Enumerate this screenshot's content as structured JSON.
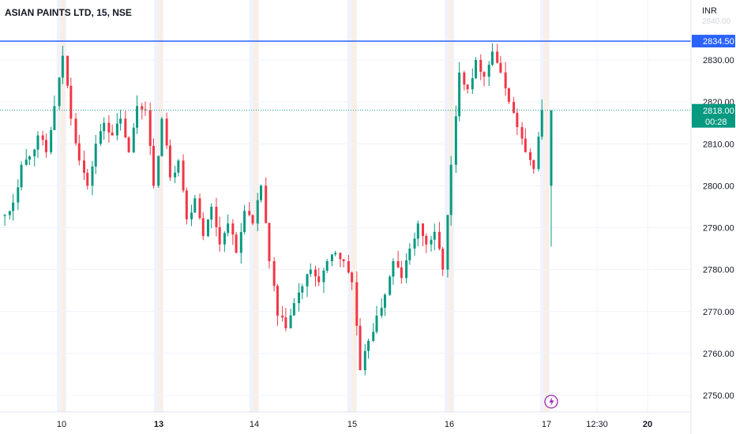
{
  "header": {
    "title": "ASIAN PAINTS LTD, 15, NSE",
    "currency": "INR",
    "partial_top_tick": "2840.00"
  },
  "chart_data": {
    "type": "candlestick",
    "title": "ASIAN PAINTS LTD, 15, NSE",
    "ylabel": "INR",
    "ylim": [
      2746,
      2840
    ],
    "yticks": [
      "2750.00",
      "2760.00",
      "2770.00",
      "2780.00",
      "2790.00",
      "2800.00",
      "2810.00",
      "2820.00",
      "2830.00"
    ],
    "xticks": [
      "10",
      "13",
      "14",
      "15",
      "16",
      "17",
      "12:30",
      "20"
    ],
    "horizontal_line": {
      "value": 2834.5,
      "label": "2834.50"
    },
    "last_price": {
      "value": 2818.0,
      "label": "2818.00",
      "countdown": "00:28"
    },
    "session_markers": [
      "10",
      "13",
      "14",
      "15",
      "16",
      "17"
    ],
    "colors": {
      "up": "#089981",
      "down": "#f23645",
      "level": "#2962ff"
    },
    "last_bar": {
      "open": 2800.0,
      "high": 2818.0,
      "low": 2785.5,
      "close": 2818.0
    },
    "anchors": [
      {
        "day": "9",
        "close": 2793
      },
      {
        "day": "9",
        "close": 2796
      },
      {
        "day": "9",
        "close": 2805
      },
      {
        "day": "9",
        "close": 2807
      },
      {
        "day": "9",
        "close": 2812
      },
      {
        "day": "9",
        "close": 2808
      },
      {
        "day": "9",
        "close": 2819
      },
      {
        "day": "10",
        "close": 2831
      },
      {
        "day": "10",
        "close": 2816
      },
      {
        "day": "10",
        "close": 2806
      },
      {
        "day": "10",
        "close": 2800
      },
      {
        "day": "10",
        "close": 2810
      },
      {
        "day": "10",
        "close": 2815
      },
      {
        "day": "10",
        "close": 2812
      },
      {
        "day": "10",
        "close": 2816
      },
      {
        "day": "10",
        "close": 2808
      },
      {
        "day": "10",
        "close": 2819
      },
      {
        "day": "10",
        "close": 2818
      },
      {
        "day": "13",
        "close": 2800
      },
      {
        "day": "13",
        "close": 2816
      },
      {
        "day": "13",
        "close": 2802
      },
      {
        "day": "13",
        "close": 2806
      },
      {
        "day": "13",
        "close": 2792
      },
      {
        "day": "13",
        "close": 2797
      },
      {
        "day": "13",
        "close": 2788
      },
      {
        "day": "13",
        "close": 2795
      },
      {
        "day": "13",
        "close": 2786
      },
      {
        "day": "13",
        "close": 2791
      },
      {
        "day": "13",
        "close": 2784
      },
      {
        "day": "13",
        "close": 2794
      },
      {
        "day": "13",
        "close": 2791
      },
      {
        "day": "14",
        "close": 2800
      },
      {
        "day": "14",
        "close": 2782
      },
      {
        "day": "14",
        "close": 2769
      },
      {
        "day": "14",
        "close": 2766
      },
      {
        "day": "14",
        "close": 2772
      },
      {
        "day": "14",
        "close": 2776
      },
      {
        "day": "14",
        "close": 2780
      },
      {
        "day": "14",
        "close": 2777
      },
      {
        "day": "14",
        "close": 2782
      },
      {
        "day": "14",
        "close": 2784
      },
      {
        "day": "14",
        "close": 2782
      },
      {
        "day": "14",
        "close": 2777
      },
      {
        "day": "15",
        "close": 2756
      },
      {
        "day": "15",
        "close": 2763
      },
      {
        "day": "15",
        "close": 2769
      },
      {
        "day": "15",
        "close": 2774
      },
      {
        "day": "15",
        "close": 2782
      },
      {
        "day": "15",
        "close": 2778
      },
      {
        "day": "15",
        "close": 2785
      },
      {
        "day": "15",
        "close": 2791
      },
      {
        "day": "15",
        "close": 2786
      },
      {
        "day": "15",
        "close": 2789
      },
      {
        "day": "15",
        "close": 2780
      },
      {
        "day": "16",
        "close": 2805
      },
      {
        "day": "16",
        "close": 2827
      },
      {
        "day": "16",
        "close": 2823
      },
      {
        "day": "16",
        "close": 2830
      },
      {
        "day": "16",
        "close": 2826
      },
      {
        "day": "16",
        "close": 2832
      },
      {
        "day": "16",
        "close": 2827
      },
      {
        "day": "16",
        "close": 2820
      },
      {
        "day": "16",
        "close": 2814
      },
      {
        "day": "16",
        "close": 2808
      },
      {
        "day": "16",
        "close": 2804
      },
      {
        "day": "17",
        "close": 2818
      }
    ]
  }
}
